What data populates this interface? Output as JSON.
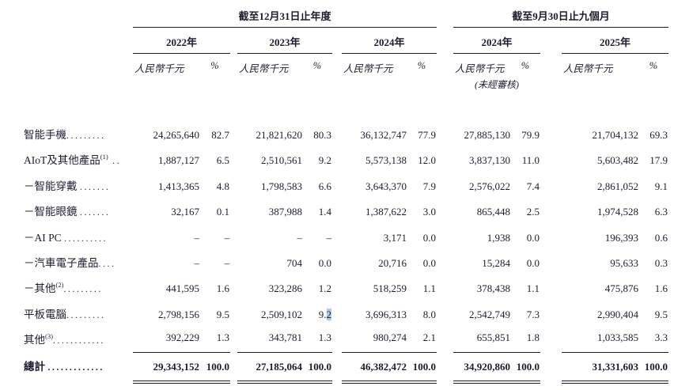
{
  "table": {
    "header": {
      "group1": {
        "title": "截至12月31日止年度",
        "years": [
          "2022年",
          "2023年",
          "2024年"
        ]
      },
      "group2": {
        "title": "截至9月30日止九個月",
        "years": [
          "2024年",
          "2025年"
        ]
      },
      "amount_label": "人民幣千元",
      "percent_label": "%",
      "unaudited_note": "(未經審核)"
    },
    "rows": [
      {
        "label": "智能手機",
        "sup": "",
        "dots": ".........",
        "style": "normal",
        "values": [
          "24,265,640",
          "82.7",
          "21,821,620",
          "80.3",
          "36,132,747",
          "77.9",
          "27,885,130",
          "79.9",
          "21,704,132",
          "69.3"
        ]
      },
      {
        "label": "AIoT及其他產品",
        "sup": "(1)",
        "dots": " ..",
        "style": "normal",
        "values": [
          "1,887,127",
          "6.5",
          "2,510,561",
          "9.2",
          "5,573,138",
          "12.0",
          "3,837,130",
          "11.0",
          "5,603,482",
          "17.9"
        ]
      },
      {
        "label": "－智能穿戴 ",
        "sup": "",
        "dots": ".......",
        "style": "normal",
        "values": [
          "1,413,365",
          "4.8",
          "1,798,583",
          "6.6",
          "3,643,370",
          "7.9",
          "2,576,022",
          "7.4",
          "2,861,052",
          "9.1"
        ]
      },
      {
        "label": "－智能眼鏡 ",
        "sup": "",
        "dots": ".......",
        "style": "normal",
        "values": [
          "32,167",
          "0.1",
          "387,988",
          "1.4",
          "1,387,622",
          "3.0",
          "865,448",
          "2.5",
          "1,974,528",
          "6.3"
        ]
      },
      {
        "label": "－AI PC ",
        "sup": "",
        "dots": "..........",
        "style": "normal",
        "values": [
          "–",
          "–",
          "–",
          "–",
          "3,171",
          "0.0",
          "1,938",
          "0.0",
          "196,393",
          "0.6"
        ]
      },
      {
        "label": "－汽車電子產品",
        "sup": "",
        "dots": "....",
        "style": "normal",
        "values": [
          "–",
          "–",
          "704",
          "0.0",
          "20,716",
          "0.0",
          "15,284",
          "0.0",
          "95,633",
          "0.3"
        ]
      },
      {
        "label": "－其他",
        "sup": "(2)",
        "dots": ".........",
        "style": "normal",
        "values": [
          "441,595",
          "1.6",
          "323,286",
          "1.2",
          "518,259",
          "1.1",
          "378,438",
          "1.1",
          "475,876",
          "1.6"
        ]
      },
      {
        "label": "平板電腦",
        "sup": "",
        "dots": ".........",
        "style": "normal",
        "highlight": {
          "value_index": 3,
          "prefix": "9.",
          "selected": "2"
        },
        "values": [
          "2,798,156",
          "9.5",
          "2,509,102",
          "9.2",
          "3,696,313",
          "8.0",
          "2,542,749",
          "7.3",
          "2,990,404",
          "9.5"
        ]
      },
      {
        "label": "其他",
        "sup": "(3)",
        "dots": "............",
        "style": "underline",
        "values": [
          "392,229",
          "1.3",
          "343,781",
          "1.3",
          "980,274",
          "2.1",
          "655,851",
          "1.8",
          "1,033,585",
          "3.3"
        ]
      },
      {
        "label": "總計 ",
        "sup": "",
        "dots": ".............",
        "style": "total",
        "values": [
          "29,343,152",
          "100.0",
          "27,185,064",
          "100.0",
          "46,382,472",
          "100.0",
          "34,920,860",
          "100.0",
          "31,331,603",
          "100.0"
        ]
      }
    ],
    "selection_color": "#aecbe8"
  }
}
